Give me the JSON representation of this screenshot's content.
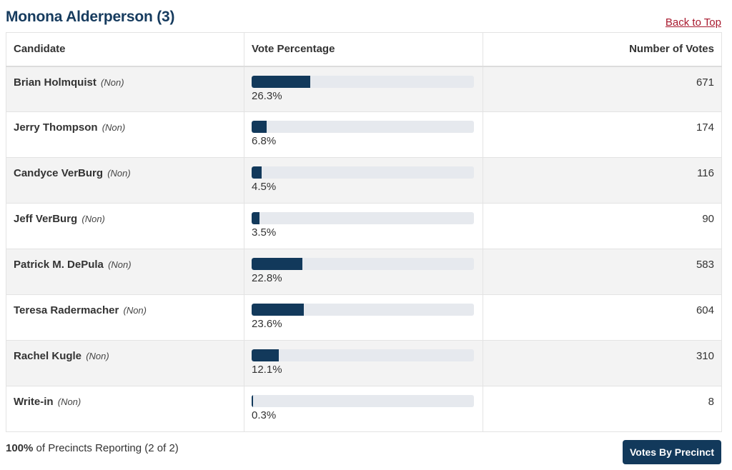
{
  "contest": {
    "title": "Monona Alderperson (3)",
    "back_to_top": "Back to Top"
  },
  "table": {
    "headers": {
      "candidate": "Candidate",
      "vote_percentage": "Vote Percentage",
      "number_of_votes": "Number of Votes"
    },
    "rows": [
      {
        "name": "Brian Holmquist",
        "party": "(Non)",
        "percent": 26.3,
        "percent_label": "26.3%",
        "votes": "671"
      },
      {
        "name": "Jerry Thompson",
        "party": "(Non)",
        "percent": 6.8,
        "percent_label": "6.8%",
        "votes": "174"
      },
      {
        "name": "Candyce VerBurg",
        "party": "(Non)",
        "percent": 4.5,
        "percent_label": "4.5%",
        "votes": "116"
      },
      {
        "name": "Jeff VerBurg",
        "party": "(Non)",
        "percent": 3.5,
        "percent_label": "3.5%",
        "votes": "90"
      },
      {
        "name": "Patrick M. DePula",
        "party": "(Non)",
        "percent": 22.8,
        "percent_label": "22.8%",
        "votes": "583"
      },
      {
        "name": "Teresa Radermacher",
        "party": "(Non)",
        "percent": 23.6,
        "percent_label": "23.6%",
        "votes": "604"
      },
      {
        "name": "Rachel Kugle",
        "party": "(Non)",
        "percent": 12.1,
        "percent_label": "12.1%",
        "votes": "310"
      },
      {
        "name": "Write-in",
        "party": "(Non)",
        "percent": 0.3,
        "percent_label": "0.3%",
        "votes": "8"
      }
    ]
  },
  "footer": {
    "precincts_percent": "100%",
    "precincts_text": " of Precincts Reporting (2 of 2)",
    "votes_by_precinct_label": "Votes By Precinct"
  },
  "colors": {
    "title": "#163b5e",
    "link": "#a8192e",
    "bar_fill": "#12395b",
    "bar_track": "#e6e9ee",
    "row_shade": "#f3f3f3",
    "button_bg": "#12395b"
  }
}
